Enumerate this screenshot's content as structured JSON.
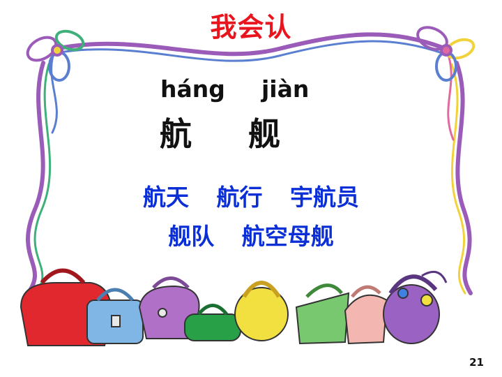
{
  "slide": {
    "title": "我会认",
    "pinyin": [
      "háng",
      "jiàn"
    ],
    "characters": [
      "航",
      "舰"
    ],
    "words_row1": [
      "航天",
      "航行",
      "宇航员"
    ],
    "words_row2": [
      "舰队",
      "航空母舰"
    ],
    "page_number": "21"
  },
  "colors": {
    "title": "#e8141e",
    "words": "#0a2fd6",
    "ribbon_purple": "#9b5bb8",
    "ribbon_blue": "#5a7fd0",
    "ribbon_green": "#3fb07a",
    "ribbon_yellow": "#f2d23a"
  },
  "icons": [
    "ribbon-frame",
    "bow-icon",
    "handbag-icon"
  ]
}
